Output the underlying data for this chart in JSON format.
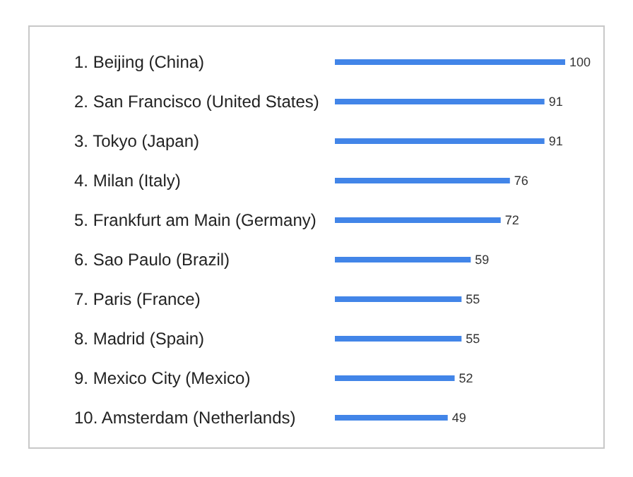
{
  "chart_data": {
    "type": "bar",
    "orientation": "horizontal",
    "data_labels": true,
    "categories": [
      "1. Beijing (China)",
      "2. San Francisco (United States)",
      "3. Tokyo (Japan)",
      "4. Milan (Italy)",
      "5. Frankfurt am Main (Germany)",
      "6. Sao Paulo (Brazil)",
      "7. Paris (France)",
      "8. Madrid (Spain)",
      "9. Mexico City (Mexico)",
      "10. Amsterdam (Netherlands)"
    ],
    "color": "#4285e8",
    "values": [
      100,
      91,
      91,
      76,
      72,
      59,
      55,
      55,
      52,
      49
    ]
  }
}
